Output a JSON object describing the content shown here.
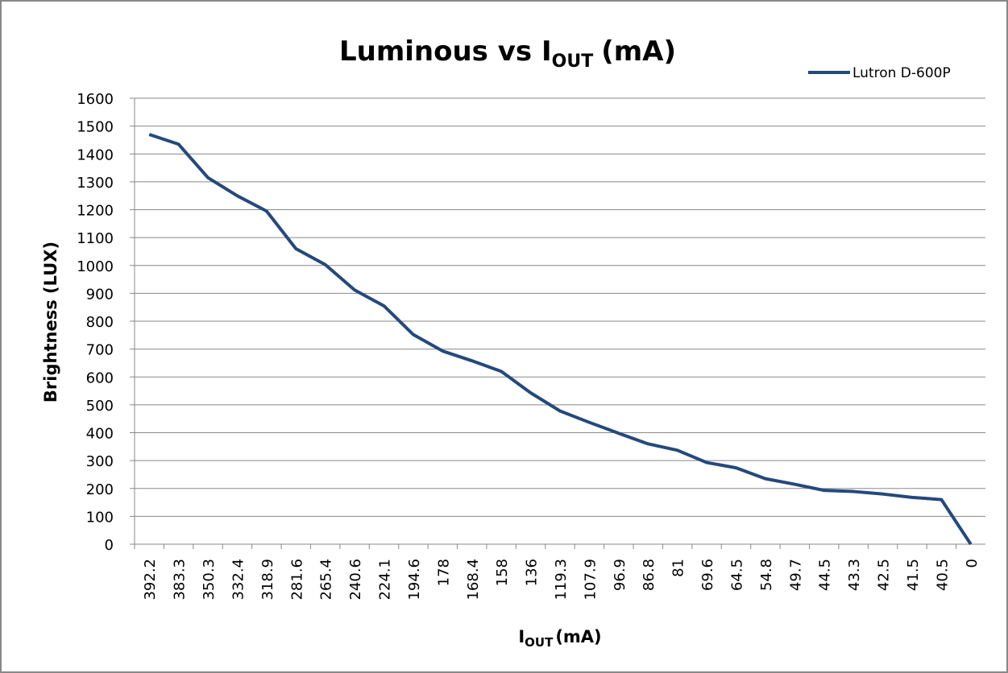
{
  "chart_data": {
    "type": "line",
    "title": {
      "text": "Luminous vs I",
      "subscript": "OUT",
      "suffix": "(mA)"
    },
    "x_label": {
      "text": "I",
      "subscript": "OUT",
      "suffix": "(mA)"
    },
    "y_label": "Brightness (LUX)",
    "categories": [
      "392.2",
      "383.3",
      "350.3",
      "332.4",
      "318.9",
      "281.6",
      "265.4",
      "240.6",
      "224.1",
      "194.6",
      "178",
      "168.4",
      "158",
      "136",
      "119.3",
      "107.9",
      "96.9",
      "86.8",
      "81",
      "69.6",
      "64.5",
      "54.8",
      "49.7",
      "44.5",
      "43.3",
      "42.5",
      "41.5",
      "40.5",
      "0"
    ],
    "series": [
      {
        "name": "Lutron D-600P",
        "color": "#24497d",
        "values": [
          1470,
          1435,
          1315,
          1250,
          1195,
          1060,
          1003,
          912,
          855,
          752,
          693,
          658,
          620,
          543,
          478,
          437,
          398,
          360,
          337,
          293,
          274,
          235,
          215,
          193,
          189,
          180,
          168,
          160,
          0
        ]
      }
    ],
    "ylim": [
      0,
      1600
    ],
    "yticks": [
      0,
      100,
      200,
      300,
      400,
      500,
      600,
      700,
      800,
      900,
      1000,
      1100,
      1200,
      1300,
      1400,
      1500,
      1600
    ],
    "grid": true,
    "legend": "top-right"
  }
}
